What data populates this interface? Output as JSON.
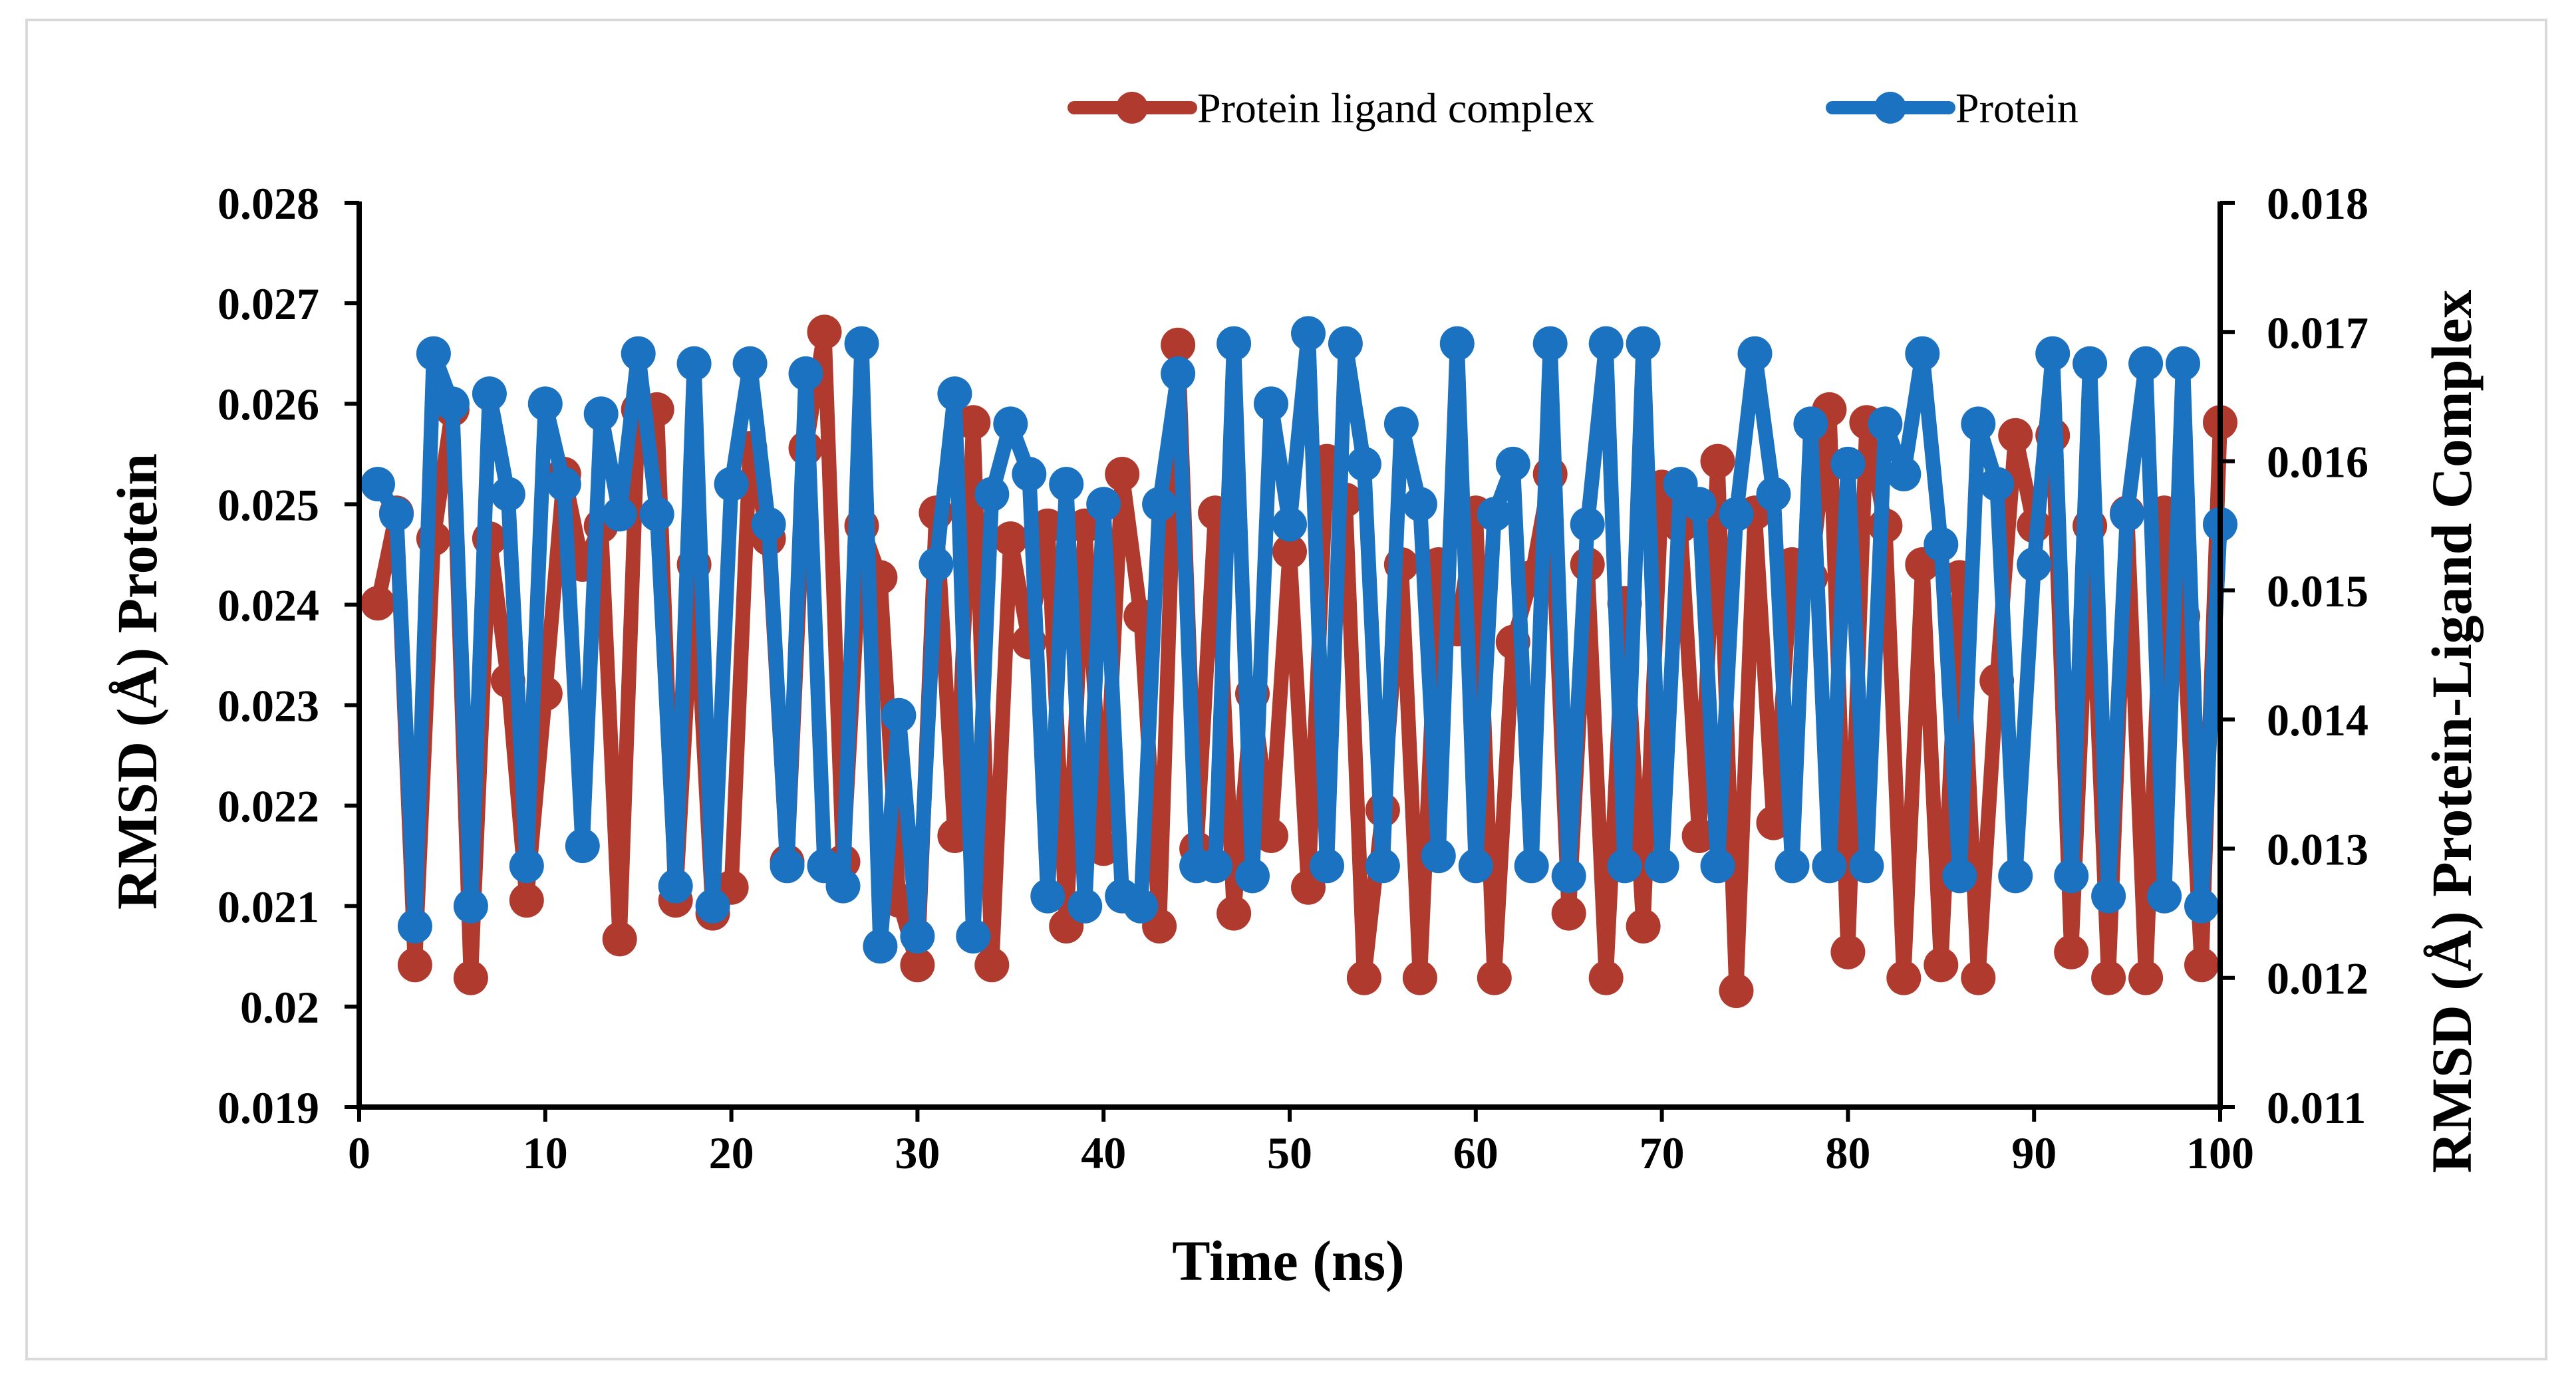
{
  "chart_data": {
    "type": "line",
    "title": "",
    "xlabel": "Time (ns)",
    "ylabel_left": "RMSD (Å) Protein",
    "ylabel_right": "RMSD (Å) Protein-Ligand Complex",
    "xlim": [
      0,
      100
    ],
    "xticks": [
      "0",
      "10",
      "20",
      "30",
      "40",
      "50",
      "60",
      "70",
      "80",
      "90",
      "100"
    ],
    "ylim_left": [
      0.019,
      0.028
    ],
    "yticks_left": [
      "0.028",
      "0.027",
      "0.026",
      "0.025",
      "0.024",
      "0.023",
      "0.022",
      "0.021",
      "0.02",
      "0.019"
    ],
    "ylim_right": [
      0.011,
      0.018
    ],
    "yticks_right": [
      "0.018",
      "0.017",
      "0.016",
      "0.015",
      "0.014",
      "0.013",
      "0.012",
      "0.011"
    ],
    "grid": false,
    "legend_position": "top-right",
    "x": [
      1,
      2,
      3,
      4,
      5,
      6,
      7,
      8,
      9,
      10,
      11,
      12,
      13,
      14,
      15,
      16,
      17,
      18,
      19,
      20,
      21,
      22,
      23,
      24,
      25,
      26,
      27,
      28,
      29,
      30,
      31,
      32,
      33,
      34,
      35,
      36,
      37,
      38,
      39,
      40,
      41,
      42,
      43,
      44,
      45,
      46,
      47,
      48,
      49,
      50,
      51,
      52,
      53,
      54,
      55,
      56,
      57,
      58,
      59,
      60,
      61,
      62,
      63,
      64,
      65,
      66,
      67,
      68,
      69,
      70,
      71,
      72,
      73,
      74,
      75,
      76,
      77,
      78,
      79,
      80,
      81,
      82,
      83,
      84,
      85,
      86,
      87,
      88,
      89,
      90,
      91,
      92,
      93,
      94,
      95,
      96,
      97,
      98,
      99,
      100
    ],
    "series": [
      {
        "name": "Protein ligand complex",
        "axis": "right",
        "color": "#b03a2e",
        "values": [
          0.0149,
          0.0156,
          0.0121,
          0.0154,
          0.0164,
          0.012,
          0.0154,
          0.0143,
          0.0126,
          0.0142,
          0.0159,
          0.0152,
          0.0155,
          0.0123,
          0.0164,
          0.0164,
          0.0126,
          0.0152,
          0.0125,
          0.0127,
          0.0161,
          0.0154,
          0.0129,
          0.0161,
          0.017,
          0.0129,
          0.0155,
          0.0151,
          0.0126,
          0.0121,
          0.0156,
          0.0131,
          0.0163,
          0.0121,
          0.0154,
          0.0146,
          0.0155,
          0.0124,
          0.0155,
          0.013,
          0.0159,
          0.0148,
          0.0124,
          0.0169,
          0.013,
          0.0156,
          0.0125,
          0.0142,
          0.0131,
          0.0153,
          0.0127,
          0.016,
          0.0157,
          0.012,
          0.0133,
          0.0152,
          0.012,
          0.0152,
          0.0147,
          0.0156,
          0.012,
          0.0146,
          0.0151,
          0.0159,
          0.0125,
          0.0152,
          0.012,
          0.0149,
          0.0124,
          0.0158,
          0.0155,
          0.0131,
          0.016,
          0.0119,
          0.0156,
          0.0132,
          0.0152,
          0.0151,
          0.0164,
          0.0122,
          0.0163,
          0.0155,
          0.012,
          0.0152,
          0.0121,
          0.0151,
          0.012,
          0.0143,
          0.0162,
          0.0155,
          0.0162,
          0.0122,
          0.0155,
          0.012,
          0.0156,
          0.012,
          0.0156,
          0.0148,
          0.0121,
          0.0163
        ]
      },
      {
        "name": "Protein",
        "axis": "left",
        "color": "#1a72c0",
        "values": [
          0.0252,
          0.0249,
          0.0208,
          0.0265,
          0.026,
          0.021,
          0.0261,
          0.0251,
          0.0214,
          0.026,
          0.0252,
          0.0216,
          0.0259,
          0.0249,
          0.0265,
          0.0249,
          0.0212,
          0.0264,
          0.021,
          0.0252,
          0.0264,
          0.0248,
          0.0214,
          0.0263,
          0.0214,
          0.0212,
          0.0266,
          0.0206,
          0.0229,
          0.0207,
          0.0244,
          0.0261,
          0.0207,
          0.0251,
          0.0258,
          0.0253,
          0.0211,
          0.0252,
          0.021,
          0.025,
          0.0211,
          0.021,
          0.025,
          0.0263,
          0.0214,
          0.0214,
          0.0266,
          0.0213,
          0.026,
          0.0248,
          0.0267,
          0.0214,
          0.0266,
          0.0254,
          0.0214,
          0.0258,
          0.025,
          0.0215,
          0.0266,
          0.0214,
          0.0249,
          0.0254,
          0.0214,
          0.0266,
          0.0213,
          0.0248,
          0.0266,
          0.0214,
          0.0266,
          0.0214,
          0.0252,
          0.025,
          0.0214,
          0.0249,
          0.0265,
          0.0251,
          0.0214,
          0.0258,
          0.0214,
          0.0254,
          0.0214,
          0.0258,
          0.0253,
          0.0265,
          0.0246,
          0.0213,
          0.0258,
          0.0252,
          0.0213,
          0.0244,
          0.0265,
          0.0213,
          0.0264,
          0.0211,
          0.0249,
          0.0264,
          0.0211,
          0.0264,
          0.021,
          0.0248
        ]
      }
    ]
  }
}
